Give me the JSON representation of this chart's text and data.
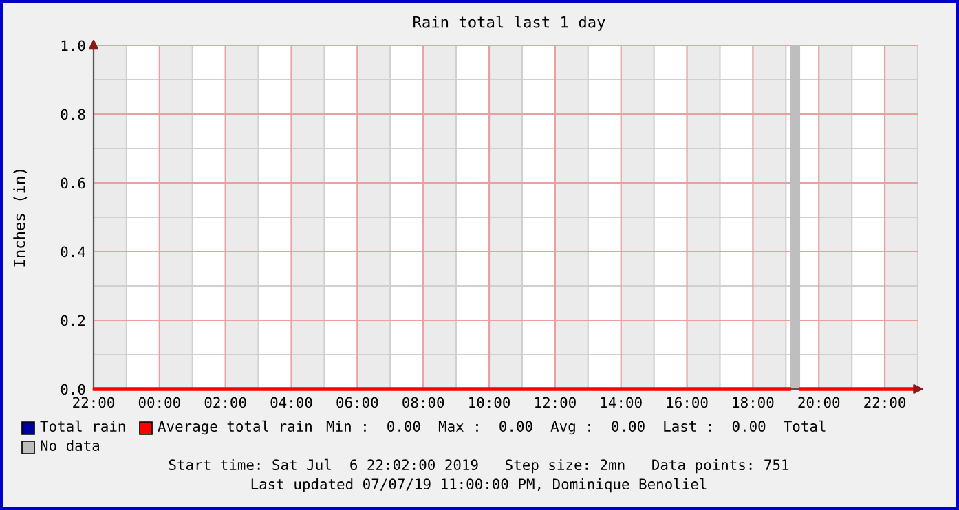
{
  "chart_data": {
    "type": "line",
    "title": "Rain total last 1 day",
    "ylabel": "Inches (in)",
    "x": [
      "2019-07-06T22:02",
      "2019-07-07T19:06",
      "2019-07-07T19:16",
      "2019-07-07T19:28",
      "2019-07-07T23:00"
    ],
    "series": [
      {
        "name": "Total rain",
        "color": "#0000a0",
        "values": [
          null,
          null,
          null,
          null,
          null
        ]
      },
      {
        "name": "Average total rain",
        "color": "#ff0000",
        "values": [
          0,
          0,
          null,
          0,
          0
        ]
      }
    ],
    "xlim": [
      "2019-07-06T22:00",
      "2019-07-07T23:00"
    ],
    "xticks": [
      {
        "value": "2019-07-06T22:00",
        "label": "22:00"
      },
      {
        "value": "2019-07-07T00:00",
        "label": "00:00"
      },
      {
        "value": "2019-07-07T02:00",
        "label": "02:00"
      },
      {
        "value": "2019-07-07T04:00",
        "label": "04:00"
      },
      {
        "value": "2019-07-07T06:00",
        "label": "06:00"
      },
      {
        "value": "2019-07-07T08:00",
        "label": "08:00"
      },
      {
        "value": "2019-07-07T10:00",
        "label": "10:00"
      },
      {
        "value": "2019-07-07T12:00",
        "label": "12:00"
      },
      {
        "value": "2019-07-07T14:00",
        "label": "14:00"
      },
      {
        "value": "2019-07-07T16:00",
        "label": "16:00"
      },
      {
        "value": "2019-07-07T18:00",
        "label": "18:00"
      },
      {
        "value": "2019-07-07T20:00",
        "label": "20:00"
      },
      {
        "value": "2019-07-07T22:00",
        "label": "22:00"
      }
    ],
    "ylim": [
      0,
      1
    ],
    "yticks": [
      {
        "value": 0,
        "label": "0.0"
      },
      {
        "value": 0.2,
        "label": "0.2"
      },
      {
        "value": 0.4,
        "label": "0.4"
      },
      {
        "value": 0.6,
        "label": "0.6"
      },
      {
        "value": 0.8,
        "label": "0.8"
      },
      {
        "value": 1,
        "label": "1.0"
      }
    ],
    "bands": [
      {
        "axis": "x",
        "from": "2019-07-06T22:00",
        "to": "2019-07-06T23:00",
        "color": "#ebebeb"
      },
      {
        "axis": "x",
        "from": "2019-07-07T00:00",
        "to": "2019-07-07T01:00",
        "color": "#ebebeb"
      },
      {
        "axis": "x",
        "from": "2019-07-07T02:00",
        "to": "2019-07-07T03:00",
        "color": "#ebebeb"
      },
      {
        "axis": "x",
        "from": "2019-07-07T04:00",
        "to": "2019-07-07T05:00",
        "color": "#ebebeb"
      },
      {
        "axis": "x",
        "from": "2019-07-07T06:00",
        "to": "2019-07-07T07:00",
        "color": "#ebebeb"
      },
      {
        "axis": "x",
        "from": "2019-07-07T08:00",
        "to": "2019-07-07T09:00",
        "color": "#ebebeb"
      },
      {
        "axis": "x",
        "from": "2019-07-07T10:00",
        "to": "2019-07-07T11:00",
        "color": "#ebebeb"
      },
      {
        "axis": "x",
        "from": "2019-07-07T12:00",
        "to": "2019-07-07T13:00",
        "color": "#ebebeb"
      },
      {
        "axis": "x",
        "from": "2019-07-07T14:00",
        "to": "2019-07-07T15:00",
        "color": "#ebebeb"
      },
      {
        "axis": "x",
        "from": "2019-07-07T16:00",
        "to": "2019-07-07T17:00",
        "color": "#ebebeb"
      },
      {
        "axis": "x",
        "from": "2019-07-07T18:00",
        "to": "2019-07-07T19:00",
        "color": "#ebebeb"
      },
      {
        "axis": "x",
        "from": "2019-07-07T20:00",
        "to": "2019-07-07T21:00",
        "color": "#ebebeb"
      },
      {
        "axis": "x",
        "from": "2019-07-07T22:00",
        "to": "2019-07-07T23:00",
        "color": "#ebebeb"
      },
      {
        "axis": "x",
        "from": "2019-07-07T19:08",
        "to": "2019-07-07T19:26",
        "color": "#bebebe",
        "label": "No data"
      }
    ],
    "annotations": [
      "Min :  0.00  Max :  0.00  Avg :  0.00  Last :  0.00  Total",
      "Start time: Sat Jul  6 22:02:00 2019   Step size: 2mn   Data points: 751",
      "Last updated 07/07/19 11:00:00 PM, Dominique Benoliel"
    ],
    "grid": true,
    "legend": "bottom"
  }
}
